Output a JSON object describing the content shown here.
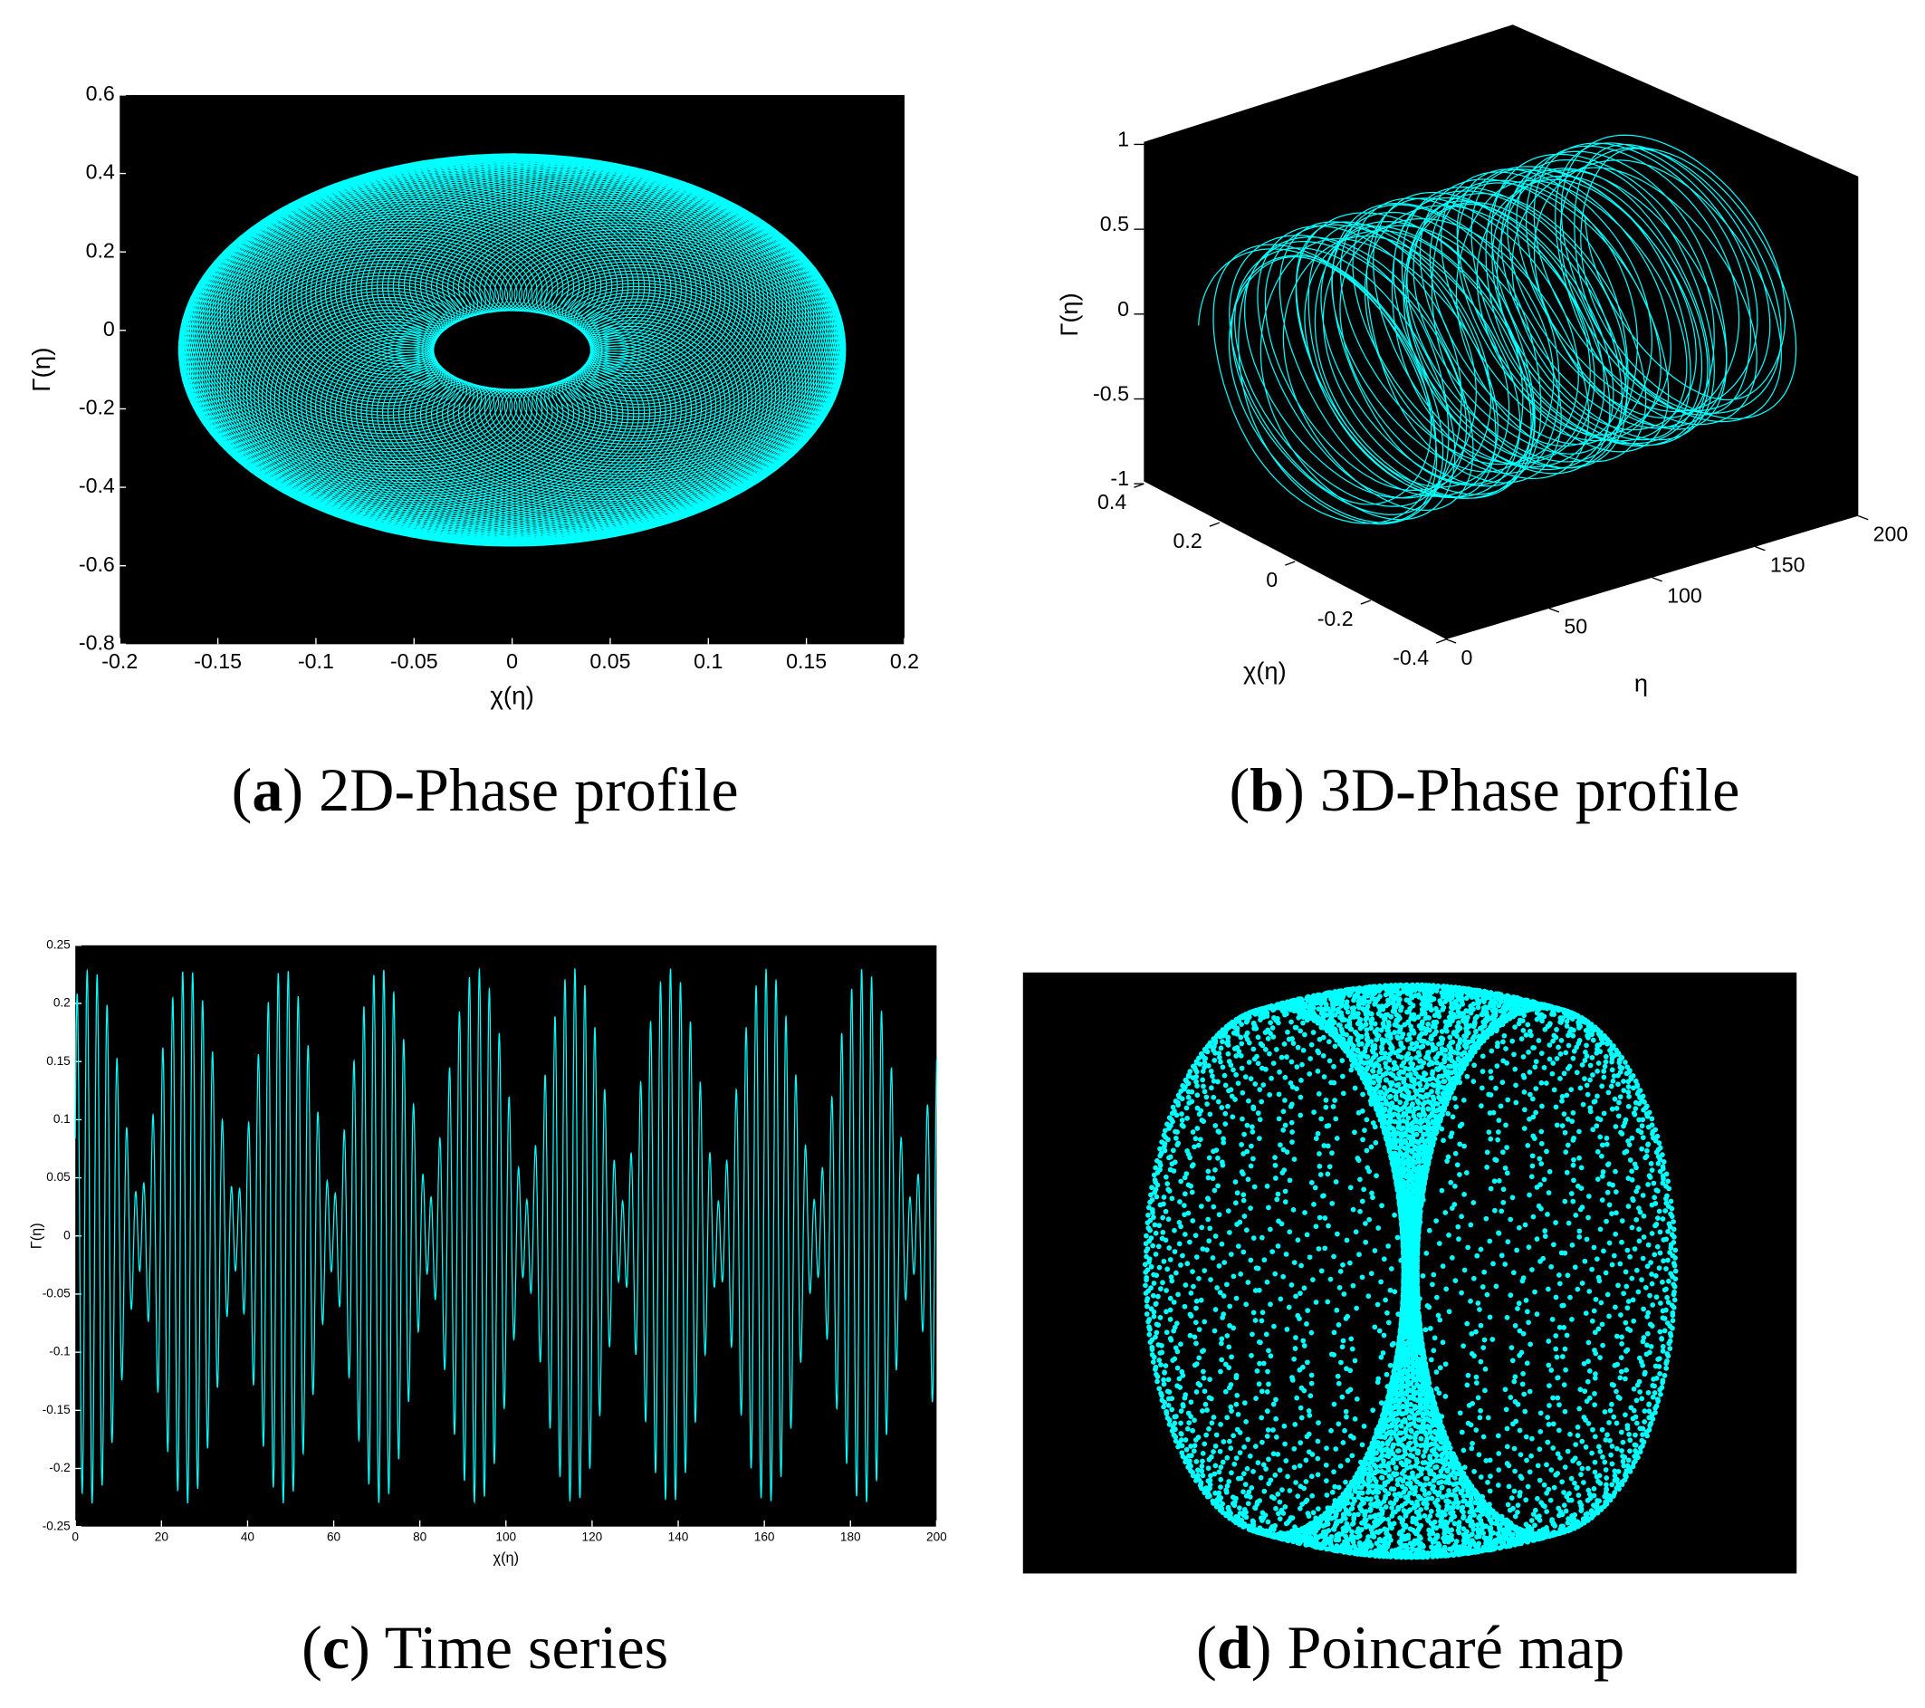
{
  "chart_data": [
    {
      "type": "line",
      "caption_open": "(",
      "caption_letter": "a",
      "caption_text": ") 2D-Phase profile",
      "xlabel": "χ(η)",
      "ylabel": "Γ(η)",
      "xlim": [
        -0.2,
        0.2
      ],
      "ylim": [
        -0.8,
        0.6
      ],
      "xticks": [
        -0.2,
        -0.15,
        -0.1,
        -0.05,
        0,
        0.05,
        0.1,
        0.15,
        0.2
      ],
      "yticks": [
        -0.8,
        -0.6,
        -0.4,
        -0.2,
        0,
        0.2,
        0.4,
        0.6
      ],
      "color": "#00ffff"
    },
    {
      "type": "line3d",
      "caption_open": "(",
      "caption_letter": "b",
      "caption_text": ") 3D-Phase profile",
      "xlabel": "χ(η)",
      "ylabel": "η",
      "zlabel": "Γ(η)",
      "xlim": [
        -0.4,
        0.4
      ],
      "ylim": [
        0,
        200
      ],
      "zlim": [
        -1,
        1
      ],
      "xticks": [
        -0.4,
        -0.2,
        0,
        0.2,
        0.4
      ],
      "yticks": [
        0,
        50,
        100,
        150,
        200
      ],
      "zticks": [
        -1,
        -0.5,
        0,
        0.5,
        1
      ],
      "color": "#00ffff"
    },
    {
      "type": "line",
      "caption_open": "(",
      "caption_letter": "c",
      "caption_text": ") Time series",
      "xlabel": "χ(η)",
      "ylabel": "Γ(η)",
      "xlim": [
        0,
        200
      ],
      "ylim": [
        -0.25,
        0.25
      ],
      "xticks": [
        0,
        20,
        40,
        60,
        80,
        100,
        120,
        140,
        160,
        180,
        200
      ],
      "yticks": [
        -0.25,
        -0.2,
        -0.15,
        -0.1,
        -0.05,
        0,
        0.05,
        0.1,
        0.15,
        0.2,
        0.25
      ],
      "color": "#00ffff"
    },
    {
      "type": "scatter",
      "caption_open": "(",
      "caption_letter": "d",
      "caption_text": ") Poincaré map",
      "color": "#00ffff"
    }
  ]
}
